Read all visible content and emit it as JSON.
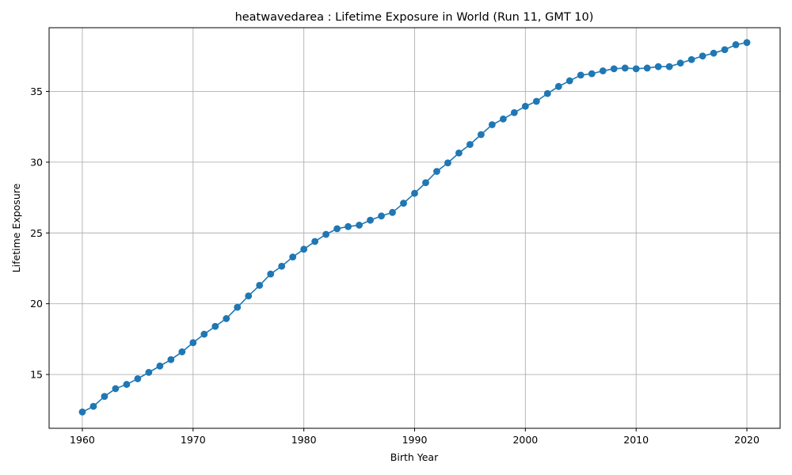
{
  "chart_data": {
    "type": "line",
    "title": "heatwavedarea : Lifetime Exposure in World (Run 11, GMT 10)",
    "xlabel": "Birth Year",
    "ylabel": "Lifetime Exposure",
    "xlim": [
      1957,
      2023
    ],
    "ylim": [
      11.2,
      39.5
    ],
    "xticks": [
      1960,
      1970,
      1980,
      1990,
      2000,
      2010,
      2020
    ],
    "yticks": [
      15,
      20,
      25,
      30,
      35
    ],
    "grid": true,
    "marker": "circle",
    "series": [
      {
        "color": "#1f77b4",
        "x": [
          1960,
          1961,
          1962,
          1963,
          1964,
          1965,
          1966,
          1967,
          1968,
          1969,
          1970,
          1971,
          1972,
          1973,
          1974,
          1975,
          1976,
          1977,
          1978,
          1979,
          1980,
          1981,
          1982,
          1983,
          1984,
          1985,
          1986,
          1987,
          1988,
          1989,
          1990,
          1991,
          1992,
          1993,
          1994,
          1995,
          1996,
          1997,
          1998,
          1999,
          2000,
          2001,
          2002,
          2003,
          2004,
          2005,
          2006,
          2007,
          2008,
          2009,
          2010,
          2011,
          2012,
          2013,
          2014,
          2015,
          2016,
          2017,
          2018,
          2019,
          2020
        ],
        "y": [
          12.35,
          12.75,
          13.45,
          14.0,
          14.3,
          14.7,
          15.15,
          15.6,
          16.05,
          16.6,
          17.25,
          17.85,
          18.4,
          18.95,
          19.75,
          20.55,
          21.3,
          22.1,
          22.65,
          23.3,
          23.85,
          24.4,
          24.9,
          25.3,
          25.45,
          25.55,
          25.9,
          26.2,
          26.45,
          27.1,
          27.8,
          28.55,
          29.35,
          29.95,
          30.65,
          31.25,
          31.95,
          32.65,
          33.05,
          33.5,
          33.95,
          34.3,
          34.85,
          35.35,
          35.75,
          36.15,
          36.25,
          36.45,
          36.6,
          36.65,
          36.6,
          36.65,
          36.75,
          36.75,
          37.0,
          37.25,
          37.5,
          37.7,
          37.95,
          38.3,
          38.45
        ]
      }
    ]
  }
}
